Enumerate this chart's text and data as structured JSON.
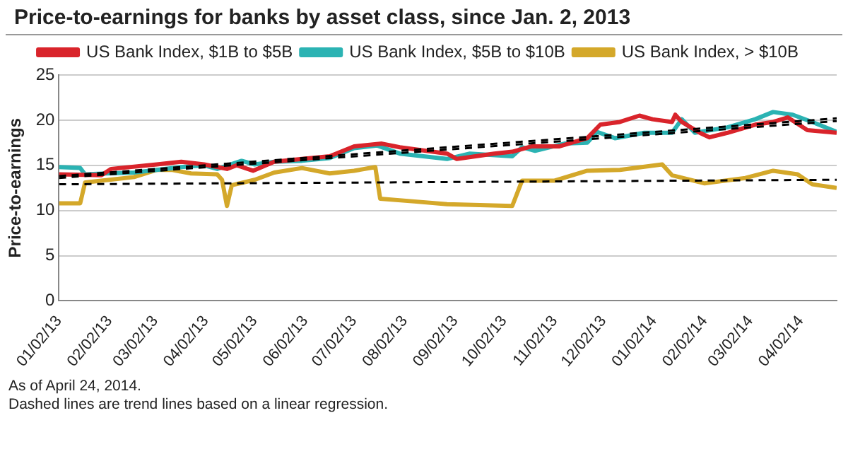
{
  "chart_data": {
    "type": "line",
    "title": "Price-to-earnings for banks by asset class, since Jan. 2, 2013",
    "ylabel": "Price-to-earnings",
    "annotations": [
      "As of April 24, 2014.",
      "Dashed lines are trend lines based on a linear regression."
    ],
    "xlim": [
      "2013-01-02",
      "2014-04-24"
    ],
    "xticks": [
      {
        "value": "2013-01-02",
        "label": "01/02/13"
      },
      {
        "value": "2013-02-02",
        "label": "02/02/13"
      },
      {
        "value": "2013-03-02",
        "label": "03/02/13"
      },
      {
        "value": "2013-04-02",
        "label": "04/02/13"
      },
      {
        "value": "2013-05-02",
        "label": "05/02/13"
      },
      {
        "value": "2013-06-02",
        "label": "06/02/13"
      },
      {
        "value": "2013-07-02",
        "label": "07/02/13"
      },
      {
        "value": "2013-08-02",
        "label": "08/02/13"
      },
      {
        "value": "2013-09-02",
        "label": "09/02/13"
      },
      {
        "value": "2013-10-02",
        "label": "10/02/13"
      },
      {
        "value": "2013-11-02",
        "label": "11/02/13"
      },
      {
        "value": "2013-12-02",
        "label": "12/02/13"
      },
      {
        "value": "2014-01-02",
        "label": "01/02/14"
      },
      {
        "value": "2014-02-02",
        "label": "02/02/14"
      },
      {
        "value": "2014-03-02",
        "label": "03/02/14"
      },
      {
        "value": "2014-04-02",
        "label": "04/02/14"
      }
    ],
    "ylim": [
      0,
      25
    ],
    "yticks": [
      0,
      5,
      10,
      15,
      20,
      25
    ],
    "grid": "y",
    "legend": "top",
    "marker": "none",
    "series": [
      {
        "name": "US Bank Index, $1B to $5B",
        "color": "#d9242b",
        "x": [
          "2013-01-02",
          "2013-01-28",
          "2013-02-03",
          "2013-03-03",
          "2013-03-18",
          "2013-04-01",
          "2013-04-15",
          "2013-04-21",
          "2013-05-01",
          "2013-05-14",
          "2013-05-31",
          "2013-06-17",
          "2013-07-02",
          "2013-07-19",
          "2013-07-30",
          "2013-08-28",
          "2013-09-03",
          "2013-09-26",
          "2013-10-07",
          "2013-10-19",
          "2013-11-05",
          "2013-11-22",
          "2013-11-30",
          "2013-12-12",
          "2013-12-24",
          "2014-01-01",
          "2014-01-13",
          "2014-01-15",
          "2014-01-19",
          "2014-01-30",
          "2014-02-05",
          "2014-02-16",
          "2014-03-05",
          "2014-03-16",
          "2014-03-25",
          "2014-04-06",
          "2014-04-24"
        ],
        "values": [
          14.0,
          13.9,
          14.6,
          15.1,
          15.4,
          15.1,
          14.6,
          15.0,
          14.4,
          15.4,
          15.7,
          16.0,
          17.1,
          17.4,
          17.0,
          16.3,
          15.7,
          16.3,
          16.5,
          17.1,
          17.1,
          18.0,
          19.5,
          19.8,
          20.5,
          20.1,
          19.8,
          20.6,
          19.8,
          18.6,
          18.1,
          18.6,
          19.5,
          19.8,
          20.3,
          18.9,
          18.6
        ]
      },
      {
        "name": "US Bank Index, $5B to $10B",
        "color": "#2bb3b3",
        "x": [
          "2013-01-02",
          "2013-01-15",
          "2013-01-18",
          "2013-01-31",
          "2013-02-17",
          "2013-03-03",
          "2013-03-18",
          "2013-04-01",
          "2013-04-09",
          "2013-04-24",
          "2013-05-02",
          "2013-05-14",
          "2013-05-31",
          "2013-06-17",
          "2013-07-02",
          "2013-07-16",
          "2013-07-30",
          "2013-08-28",
          "2013-09-11",
          "2013-10-07",
          "2013-10-13",
          "2013-10-21",
          "2013-11-08",
          "2013-11-22",
          "2013-11-28",
          "2013-12-09",
          "2013-12-27",
          "2014-01-13",
          "2014-01-19",
          "2014-01-27",
          "2014-02-16",
          "2014-03-05",
          "2014-03-16",
          "2014-03-28",
          "2014-04-09",
          "2014-04-24"
        ],
        "values": [
          14.8,
          14.7,
          14.0,
          14.1,
          14.2,
          14.5,
          14.8,
          15.0,
          14.6,
          15.5,
          15.1,
          15.4,
          15.5,
          15.8,
          16.9,
          17.2,
          16.3,
          15.7,
          16.3,
          16.0,
          17.0,
          16.6,
          17.4,
          17.5,
          18.7,
          18.0,
          18.6,
          18.6,
          20.1,
          18.6,
          19.2,
          20.1,
          20.9,
          20.6,
          19.8,
          18.7
        ]
      },
      {
        "name": "US Bank Index, > $10B",
        "color": "#d4a82a",
        "x": [
          "2013-01-02",
          "2013-01-15",
          "2013-01-18",
          "2013-02-17",
          "2013-03-03",
          "2013-03-12",
          "2013-03-24",
          "2013-04-09",
          "2013-04-12",
          "2013-04-15",
          "2013-04-18",
          "2013-05-02",
          "2013-05-14",
          "2013-05-31",
          "2013-06-17",
          "2013-07-02",
          "2013-07-15",
          "2013-07-18",
          "2013-08-08",
          "2013-08-28",
          "2013-10-07",
          "2013-10-13",
          "2013-11-02",
          "2013-11-22",
          "2013-12-12",
          "2014-01-07",
          "2014-01-13",
          "2014-02-02",
          "2014-02-27",
          "2014-03-16",
          "2014-03-31",
          "2014-04-09",
          "2014-04-24"
        ],
        "values": [
          10.8,
          10.8,
          13.1,
          13.7,
          14.5,
          14.5,
          14.1,
          14.0,
          13.4,
          10.5,
          12.8,
          13.4,
          14.2,
          14.7,
          14.1,
          14.4,
          14.8,
          11.3,
          11.0,
          10.7,
          10.5,
          13.3,
          13.3,
          14.4,
          14.5,
          15.1,
          13.9,
          13.0,
          13.6,
          14.4,
          14.0,
          12.9,
          12.5
        ]
      },
      {
        "type": "line",
        "color": "#000000",
        "line_style": "dashed",
        "x": [
          "2013-01-02",
          "2014-04-24"
        ],
        "values": [
          13.8,
          20.2
        ]
      },
      {
        "type": "line",
        "color": "#000000",
        "line_style": "dashed",
        "x": [
          "2013-01-02",
          "2014-04-24"
        ],
        "values": [
          13.6,
          19.9
        ]
      },
      {
        "type": "line",
        "color": "#000000",
        "line_style": "dashed",
        "x": [
          "2013-01-02",
          "2014-04-24"
        ],
        "values": [
          12.9,
          13.4
        ]
      }
    ]
  }
}
